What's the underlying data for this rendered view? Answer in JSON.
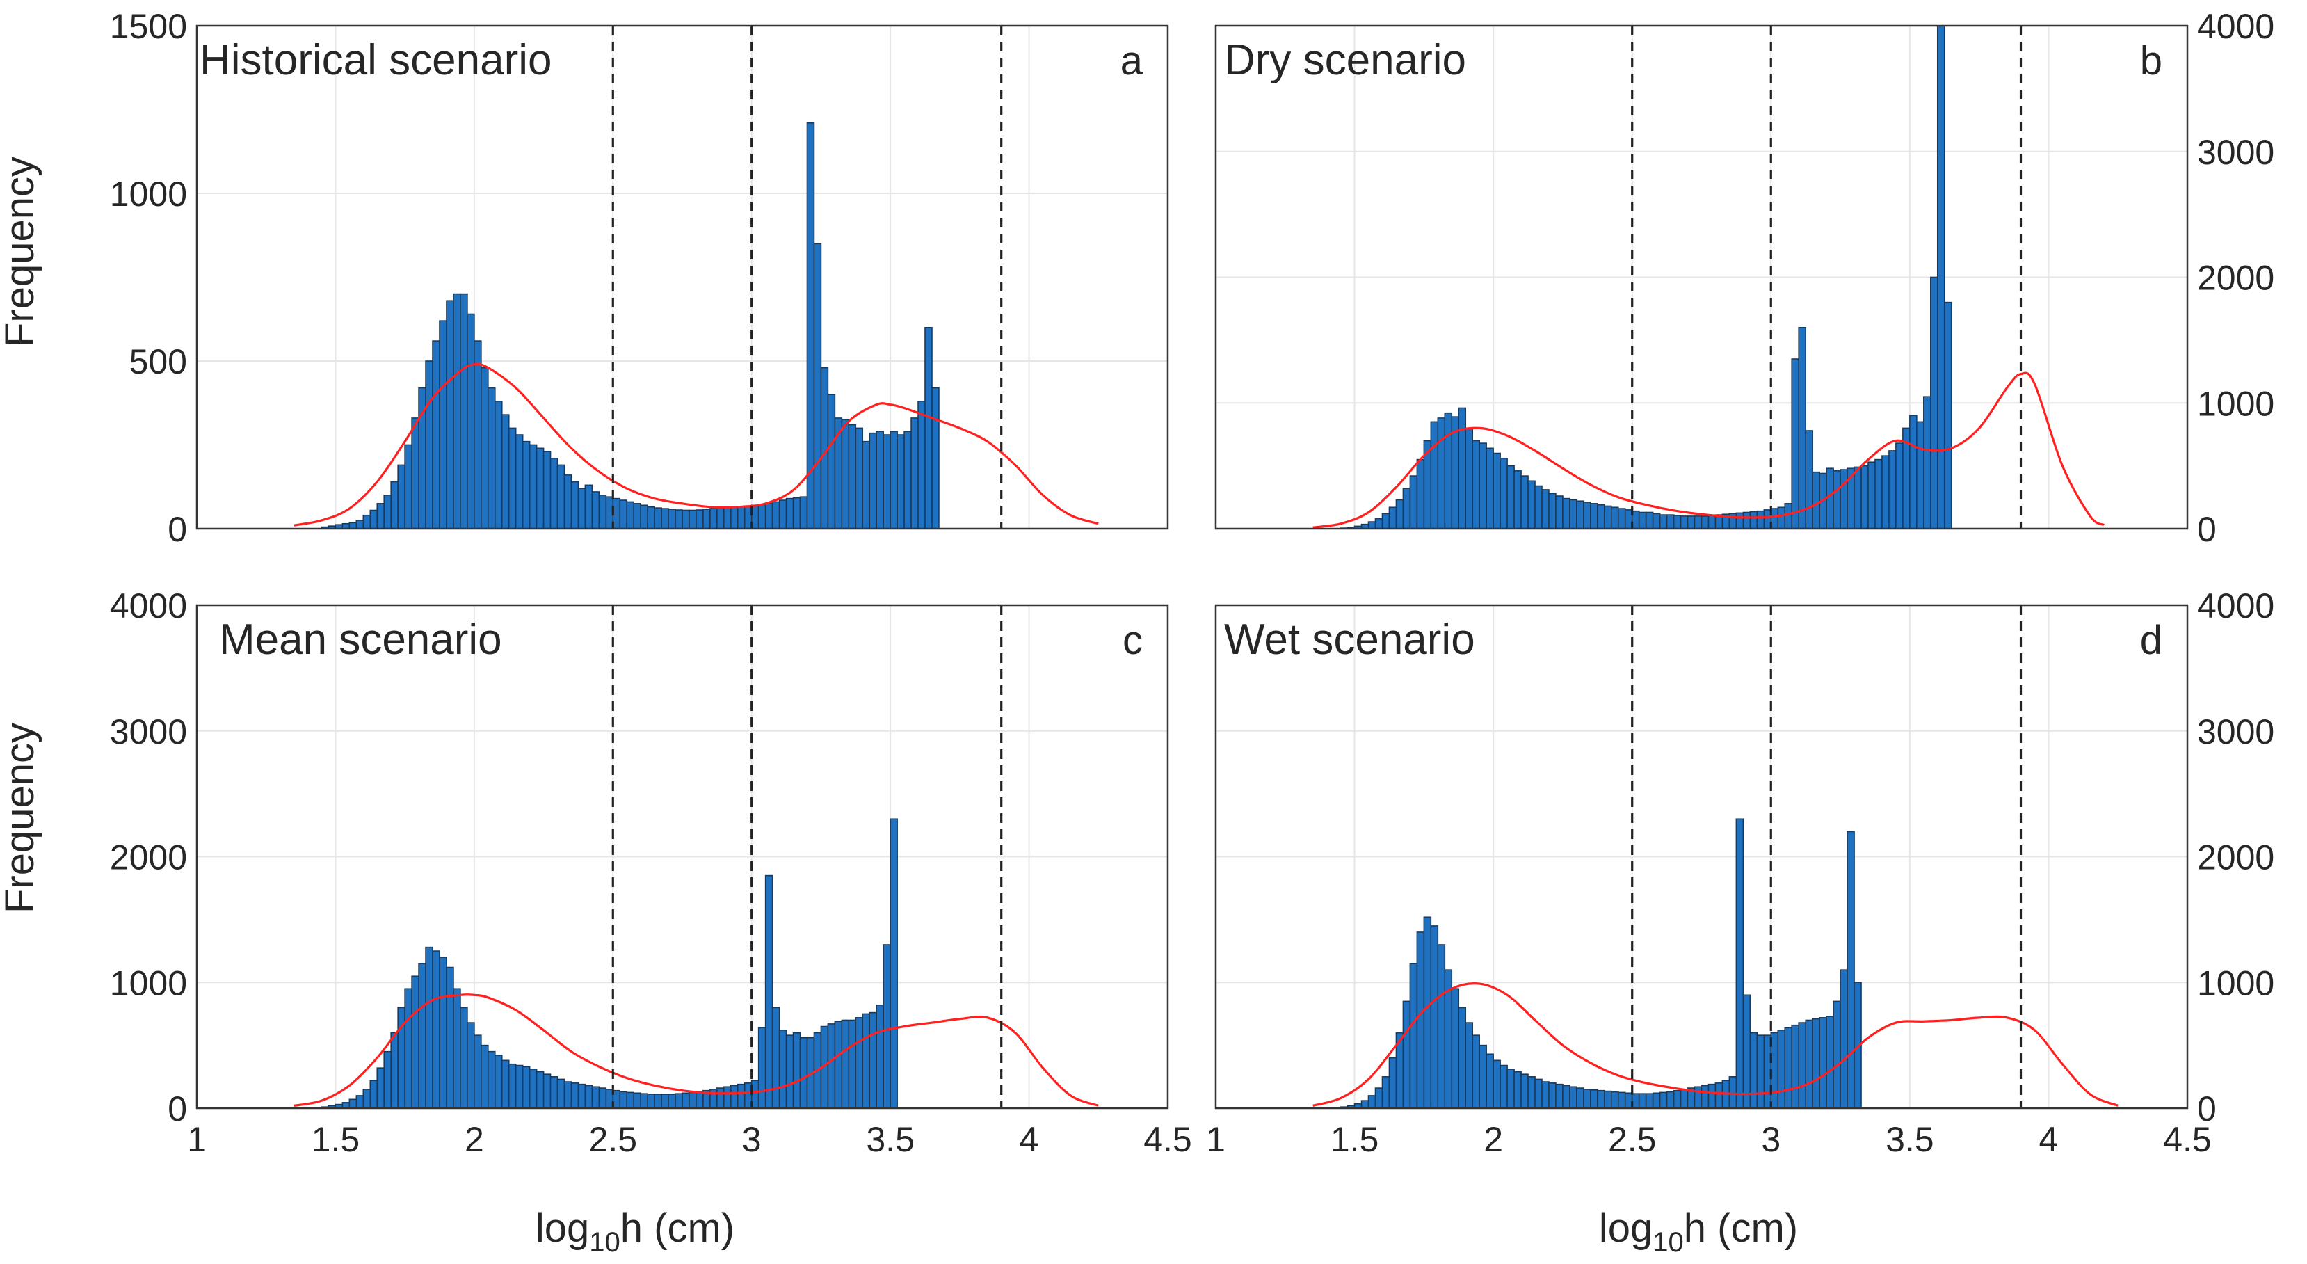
{
  "chart_data": [
    {
      "panel": "a",
      "type": "bar",
      "title": "Historical scenario",
      "letter": "a",
      "xlabel": "",
      "ylabel": "Frequency",
      "xlim": [
        1,
        4.5
      ],
      "ylim": [
        0,
        1500
      ],
      "xticks": [
        1,
        1.5,
        2,
        2.5,
        3,
        3.5,
        4,
        4.5
      ],
      "yticks": [
        0,
        500,
        1000,
        1500
      ],
      "xtick_labels": [],
      "ytick_labels": [
        "0",
        "500",
        "1000",
        "1500"
      ],
      "ytick_side": "left",
      "show_xtick_labels": false,
      "grid": true,
      "bin_start": 1.45,
      "bin_width": 0.025,
      "values": [
        5,
        8,
        12,
        15,
        18,
        25,
        40,
        55,
        75,
        100,
        140,
        190,
        250,
        330,
        420,
        500,
        560,
        620,
        680,
        700,
        700,
        640,
        560,
        480,
        420,
        380,
        340,
        300,
        280,
        260,
        250,
        240,
        230,
        210,
        190,
        160,
        140,
        120,
        130,
        110,
        100,
        95,
        90,
        85,
        80,
        75,
        70,
        65,
        62,
        60,
        58,
        56,
        55,
        55,
        56,
        58,
        60,
        62,
        63,
        64,
        66,
        68,
        70,
        72,
        75,
        80,
        85,
        90,
        92,
        95,
        1210,
        850,
        480,
        400,
        330,
        325,
        310,
        300,
        260,
        285,
        290,
        280,
        290,
        280,
        290,
        330,
        380,
        600,
        420
      ],
      "kde": {
        "name": "KDE",
        "x": [
          1.35,
          1.45,
          1.55,
          1.65,
          1.75,
          1.85,
          1.95,
          2.0,
          2.05,
          2.15,
          2.25,
          2.35,
          2.45,
          2.55,
          2.65,
          2.75,
          2.85,
          2.95,
          3.05,
          3.15,
          3.25,
          3.35,
          3.45,
          3.5,
          3.55,
          3.65,
          3.75,
          3.85,
          3.95,
          4.05,
          4.15,
          4.25
        ],
        "y": [
          10,
          25,
          60,
          140,
          260,
          390,
          470,
          490,
          480,
          420,
          330,
          240,
          170,
          120,
          90,
          75,
          65,
          65,
          75,
          115,
          210,
          320,
          370,
          370,
          360,
          330,
          300,
          260,
          190,
          100,
          40,
          15
        ]
      },
      "vlines": [
        2.5,
        3.0,
        3.9
      ]
    },
    {
      "panel": "b",
      "type": "bar",
      "title": "Dry scenario",
      "letter": "b",
      "xlabel": "",
      "ylabel": "",
      "xlim": [
        1,
        4.5
      ],
      "ylim": [
        0,
        4000
      ],
      "xticks": [
        1,
        1.5,
        2,
        2.5,
        3,
        3.5,
        4,
        4.5
      ],
      "yticks": [
        0,
        1000,
        2000,
        3000,
        4000
      ],
      "xtick_labels": [],
      "ytick_labels": [
        "0",
        "1000",
        "2000",
        "3000",
        "4000"
      ],
      "ytick_side": "right",
      "show_xtick_labels": false,
      "grid": true,
      "bin_start": 1.45,
      "bin_width": 0.025,
      "values": [
        5,
        10,
        20,
        35,
        55,
        80,
        120,
        170,
        230,
        320,
        420,
        550,
        700,
        850,
        880,
        920,
        890,
        960,
        800,
        700,
        680,
        640,
        600,
        560,
        500,
        460,
        420,
        380,
        340,
        310,
        280,
        260,
        240,
        230,
        220,
        210,
        200,
        190,
        180,
        170,
        160,
        150,
        140,
        130,
        130,
        120,
        110,
        110,
        105,
        100,
        100,
        100,
        100,
        105,
        110,
        115,
        120,
        125,
        130,
        135,
        140,
        150,
        160,
        170,
        200,
        1350,
        1600,
        780,
        450,
        440,
        480,
        460,
        470,
        480,
        490,
        500,
        530,
        550,
        580,
        620,
        680,
        800,
        900,
        850,
        1050,
        2000,
        4000,
        1800
      ],
      "kde": {
        "name": "KDE",
        "x": [
          1.35,
          1.45,
          1.55,
          1.65,
          1.75,
          1.85,
          1.95,
          2.05,
          2.15,
          2.25,
          2.35,
          2.45,
          2.55,
          2.65,
          2.75,
          2.85,
          2.95,
          3.05,
          3.15,
          3.25,
          3.35,
          3.45,
          3.55,
          3.65,
          3.75,
          3.85,
          3.9,
          3.95,
          4.05,
          4.15,
          4.2
        ],
        "y": [
          10,
          40,
          130,
          330,
          580,
          760,
          800,
          740,
          620,
          480,
          350,
          250,
          190,
          145,
          115,
          95,
          90,
          110,
          180,
          330,
          550,
          700,
          630,
          640,
          800,
          1120,
          1230,
          1150,
          500,
          100,
          30
        ]
      },
      "vlines": [
        2.5,
        3.0,
        3.9
      ]
    },
    {
      "panel": "c",
      "type": "bar",
      "title": "Mean scenario",
      "letter": "c",
      "xlabel": "log10h (cm)",
      "ylabel": "Frequency",
      "xlim": [
        1,
        4.5
      ],
      "ylim": [
        0,
        4000
      ],
      "xticks": [
        1,
        1.5,
        2,
        2.5,
        3,
        3.5,
        4,
        4.5
      ],
      "yticks": [
        0,
        1000,
        2000,
        3000,
        4000
      ],
      "xtick_labels": [
        "1",
        "1.5",
        "2",
        "2.5",
        "3",
        "3.5",
        "4",
        "4.5"
      ],
      "ytick_labels": [
        "0",
        "1000",
        "2000",
        "3000",
        "4000"
      ],
      "ytick_side": "left",
      "show_xtick_labels": true,
      "grid": true,
      "bin_start": 1.45,
      "bin_width": 0.025,
      "values": [
        10,
        20,
        30,
        45,
        70,
        100,
        150,
        220,
        320,
        450,
        600,
        800,
        950,
        1050,
        1150,
        1280,
        1250,
        1200,
        1120,
        950,
        800,
        680,
        580,
        500,
        450,
        420,
        380,
        350,
        340,
        330,
        310,
        290,
        270,
        250,
        230,
        210,
        200,
        190,
        180,
        170,
        160,
        150,
        140,
        130,
        125,
        120,
        115,
        110,
        110,
        110,
        110,
        115,
        120,
        125,
        130,
        140,
        150,
        160,
        170,
        180,
        190,
        200,
        220,
        640,
        1850,
        800,
        620,
        580,
        600,
        560,
        560,
        600,
        650,
        670,
        690,
        700,
        700,
        720,
        750,
        760,
        820,
        1300,
        2300
      ],
      "kde": {
        "name": "KDE",
        "x": [
          1.35,
          1.45,
          1.55,
          1.65,
          1.75,
          1.85,
          1.95,
          2.0,
          2.05,
          2.15,
          2.25,
          2.35,
          2.45,
          2.55,
          2.65,
          2.75,
          2.85,
          2.95,
          3.05,
          3.15,
          3.25,
          3.35,
          3.45,
          3.55,
          3.65,
          3.75,
          3.85,
          3.95,
          4.05,
          4.15,
          4.25
        ],
        "y": [
          20,
          60,
          180,
          400,
          680,
          860,
          900,
          900,
          880,
          780,
          620,
          450,
          330,
          240,
          180,
          140,
          120,
          120,
          140,
          200,
          320,
          480,
          600,
          650,
          680,
          710,
          720,
          600,
          320,
          100,
          20
        ]
      },
      "vlines": [
        2.5,
        3.0,
        3.9
      ]
    },
    {
      "panel": "d",
      "type": "bar",
      "title": "Wet scenario",
      "letter": "d",
      "xlabel": "log10h (cm)",
      "ylabel": "",
      "xlim": [
        1,
        4.5
      ],
      "ylim": [
        0,
        4000
      ],
      "xticks": [
        1,
        1.5,
        2,
        2.5,
        3,
        3.5,
        4,
        4.5
      ],
      "yticks": [
        0,
        1000,
        2000,
        3000,
        4000
      ],
      "xtick_labels": [
        "1",
        "1.5",
        "2",
        "2.5",
        "3",
        "3.5",
        "4",
        "4.5"
      ],
      "ytick_labels": [
        "0",
        "1000",
        "2000",
        "3000",
        "4000"
      ],
      "ytick_side": "right",
      "show_xtick_labels": true,
      "grid": true,
      "bin_start": 1.45,
      "bin_width": 0.025,
      "values": [
        10,
        20,
        35,
        60,
        100,
        160,
        250,
        400,
        600,
        850,
        1150,
        1400,
        1520,
        1450,
        1300,
        1100,
        950,
        800,
        680,
        580,
        500,
        430,
        380,
        340,
        310,
        290,
        270,
        250,
        230,
        210,
        200,
        190,
        180,
        170,
        160,
        150,
        145,
        140,
        135,
        130,
        125,
        120,
        115,
        115,
        115,
        120,
        125,
        130,
        140,
        150,
        160,
        170,
        180,
        190,
        200,
        220,
        250,
        2300,
        900,
        600,
        580,
        580,
        600,
        620,
        640,
        660,
        680,
        700,
        710,
        720,
        730,
        850,
        1100,
        2200,
        1000
      ],
      "kde": {
        "name": "KDE",
        "x": [
          1.35,
          1.45,
          1.55,
          1.65,
          1.75,
          1.85,
          1.95,
          2.05,
          2.15,
          2.25,
          2.35,
          2.45,
          2.55,
          2.65,
          2.75,
          2.85,
          2.95,
          3.05,
          3.15,
          3.25,
          3.35,
          3.45,
          3.55,
          3.65,
          3.75,
          3.85,
          3.95,
          4.05,
          4.15,
          4.25
        ],
        "y": [
          20,
          80,
          230,
          500,
          780,
          950,
          990,
          900,
          700,
          500,
          360,
          260,
          200,
          160,
          130,
          115,
          115,
          140,
          210,
          360,
          560,
          680,
          690,
          700,
          720,
          720,
          620,
          350,
          110,
          20
        ]
      },
      "vlines": [
        2.5,
        3.0,
        3.9
      ]
    }
  ],
  "colors": {
    "bar": "#1f72c2",
    "bar_edge": "#1a3a5c",
    "kde": "#ff2020",
    "vline": "#222222",
    "grid": "#e6e6e6",
    "frame": "#333333"
  }
}
